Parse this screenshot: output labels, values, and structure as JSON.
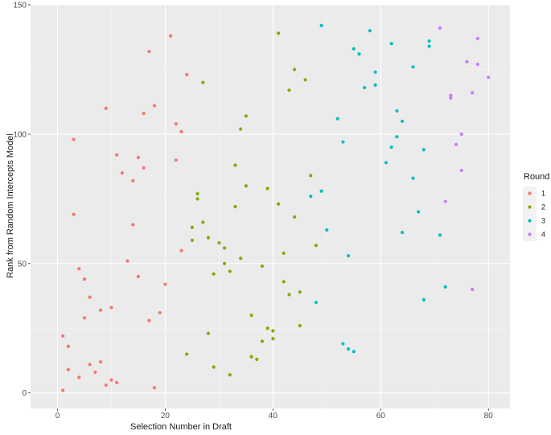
{
  "chart_data": {
    "type": "scatter",
    "xlabel": "Selection Number in Draft",
    "ylabel": "Rank from Random Intercepts Model",
    "xlim": [
      -5,
      84
    ],
    "ylim": [
      -6,
      150
    ],
    "xticks": [
      0,
      20,
      40,
      60,
      80
    ],
    "yticks": [
      0,
      50,
      100,
      150
    ],
    "xtick_labels": [
      "0",
      "20",
      "40",
      "60",
      "80"
    ],
    "ytick_labels": [
      "0",
      "50",
      "100",
      "150"
    ],
    "grid": true,
    "legend": {
      "title": "Round",
      "position": "right"
    },
    "series": [
      {
        "name": "1",
        "color": "#F8766D",
        "points": [
          [
            1,
            1
          ],
          [
            1,
            22
          ],
          [
            2,
            18
          ],
          [
            2,
            9
          ],
          [
            3,
            69
          ],
          [
            3,
            98
          ],
          [
            4,
            48
          ],
          [
            4,
            6
          ],
          [
            5,
            44
          ],
          [
            5,
            29
          ],
          [
            6,
            37
          ],
          [
            6,
            11
          ],
          [
            7,
            8
          ],
          [
            8,
            32
          ],
          [
            8,
            12
          ],
          [
            9,
            110
          ],
          [
            9,
            3
          ],
          [
            10,
            33
          ],
          [
            10,
            5
          ],
          [
            11,
            92
          ],
          [
            11,
            4
          ],
          [
            12,
            85
          ],
          [
            13,
            51
          ],
          [
            14,
            82
          ],
          [
            14,
            65
          ],
          [
            15,
            91
          ],
          [
            15,
            45
          ],
          [
            16,
            108
          ],
          [
            16,
            87
          ],
          [
            17,
            132
          ],
          [
            17,
            28
          ],
          [
            18,
            111
          ],
          [
            18,
            2
          ],
          [
            19,
            31
          ],
          [
            20,
            42
          ],
          [
            21,
            138
          ],
          [
            22,
            104
          ],
          [
            22,
            90
          ],
          [
            23,
            101
          ],
          [
            23,
            55
          ],
          [
            24,
            123
          ]
        ]
      },
      {
        "name": "2",
        "color": "#7CAE00",
        "points": [
          [
            24,
            15
          ],
          [
            25,
            64
          ],
          [
            25,
            59
          ],
          [
            26,
            77
          ],
          [
            26,
            75
          ],
          [
            27,
            120
          ],
          [
            27,
            66
          ],
          [
            28,
            60
          ],
          [
            28,
            23
          ],
          [
            29,
            46
          ],
          [
            29,
            10
          ],
          [
            30,
            58
          ],
          [
            31,
            56
          ],
          [
            31,
            50
          ],
          [
            32,
            47
          ],
          [
            32,
            7
          ],
          [
            33,
            88
          ],
          [
            33,
            72
          ],
          [
            34,
            102
          ],
          [
            34,
            52
          ],
          [
            35,
            107
          ],
          [
            35,
            80
          ],
          [
            36,
            30
          ],
          [
            36,
            14
          ],
          [
            37,
            13
          ],
          [
            38,
            49
          ],
          [
            38,
            20
          ],
          [
            39,
            79
          ],
          [
            39,
            25
          ],
          [
            40,
            24
          ],
          [
            40,
            21
          ],
          [
            41,
            139
          ],
          [
            41,
            73
          ],
          [
            42,
            54
          ],
          [
            42,
            43
          ],
          [
            43,
            117
          ],
          [
            43,
            38
          ],
          [
            44,
            125
          ],
          [
            44,
            68
          ],
          [
            45,
            39
          ],
          [
            45,
            26
          ],
          [
            46,
            121
          ],
          [
            47,
            84
          ],
          [
            48,
            57
          ]
        ]
      },
      {
        "name": "3",
        "color": "#00BFC4",
        "points": [
          [
            47,
            76
          ],
          [
            48,
            35
          ],
          [
            49,
            142
          ],
          [
            49,
            78
          ],
          [
            50,
            63
          ],
          [
            52,
            106
          ],
          [
            53,
            97
          ],
          [
            53,
            19
          ],
          [
            54,
            53
          ],
          [
            54,
            17
          ],
          [
            55,
            133
          ],
          [
            55,
            16
          ],
          [
            56,
            131
          ],
          [
            57,
            118
          ],
          [
            58,
            140
          ],
          [
            59,
            124
          ],
          [
            59,
            119
          ],
          [
            61,
            89
          ],
          [
            62,
            135
          ],
          [
            62,
            95
          ],
          [
            63,
            109
          ],
          [
            63,
            99
          ],
          [
            64,
            105
          ],
          [
            64,
            62
          ],
          [
            66,
            126
          ],
          [
            66,
            83
          ],
          [
            67,
            70
          ],
          [
            68,
            94
          ],
          [
            68,
            36
          ],
          [
            69,
            136
          ],
          [
            69,
            134
          ],
          [
            71,
            61
          ],
          [
            72,
            41
          ]
        ]
      },
      {
        "name": "4",
        "color": "#C77CFF",
        "points": [
          [
            71,
            141
          ],
          [
            72,
            74
          ],
          [
            73,
            115
          ],
          [
            73,
            114
          ],
          [
            74,
            96
          ],
          [
            75,
            100
          ],
          [
            75,
            86
          ],
          [
            76,
            128
          ],
          [
            77,
            116
          ],
          [
            77,
            40
          ],
          [
            78,
            137
          ],
          [
            78,
            127
          ],
          [
            80,
            122
          ]
        ]
      }
    ]
  }
}
